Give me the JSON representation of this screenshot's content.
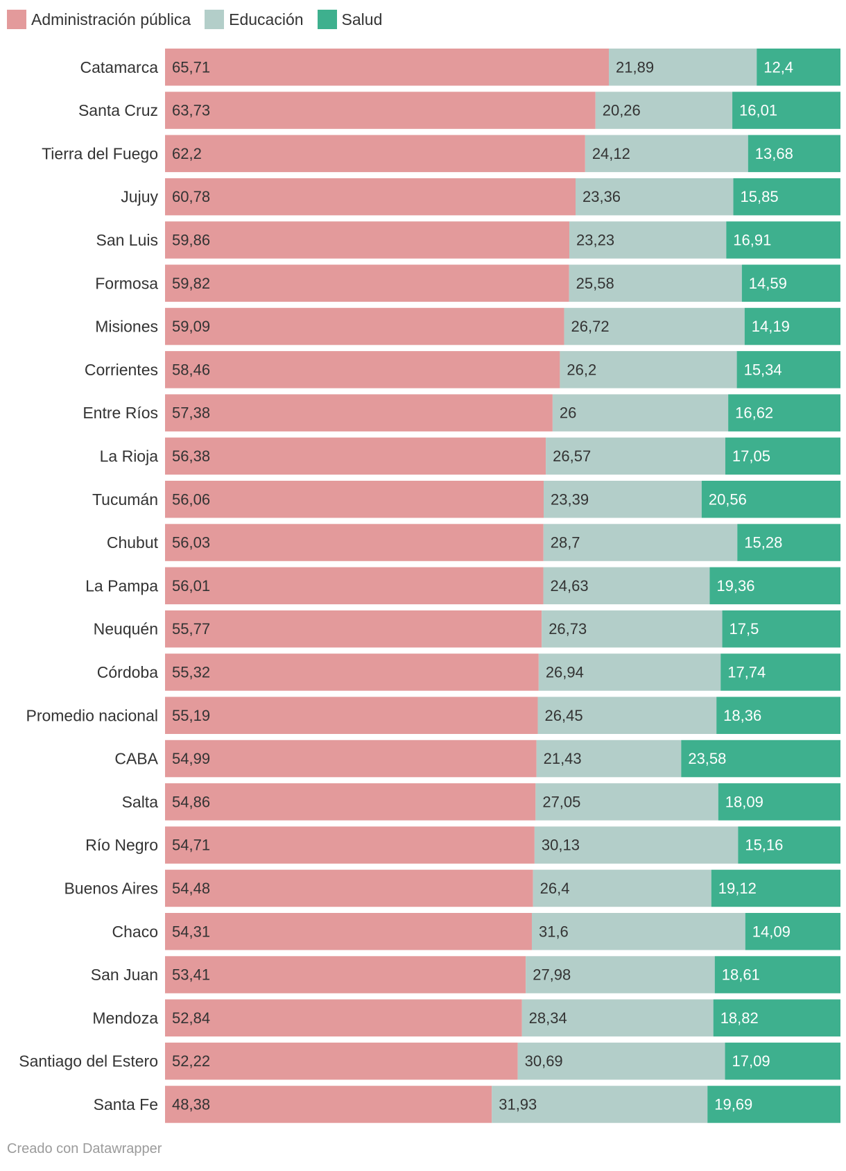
{
  "chart_data": {
    "type": "bar",
    "orientation": "horizontal",
    "stacked": true,
    "xlim": [
      0,
      100
    ],
    "categories": [
      "Catamarca",
      "Santa Cruz",
      "Tierra del Fuego",
      "Jujuy",
      "San Luis",
      "Formosa",
      "Misiones",
      "Corrientes",
      "Entre Ríos",
      "La Rioja",
      "Tucumán",
      "Chubut",
      "La Pampa",
      "Neuquén",
      "Córdoba",
      "Promedio nacional",
      "CABA",
      "Salta",
      "Río Negro",
      "Buenos Aires",
      "Chaco",
      "San Juan",
      "Mendoza",
      "Santiago del Estero",
      "Santa Fe"
    ],
    "series": [
      {
        "name": "Administración pública",
        "color": "#e39a9b",
        "label_color": "#333333",
        "values": [
          65.71,
          63.73,
          62.2,
          60.78,
          59.86,
          59.82,
          59.09,
          58.46,
          57.38,
          56.38,
          56.06,
          56.03,
          56.01,
          55.77,
          55.32,
          55.19,
          54.99,
          54.86,
          54.71,
          54.48,
          54.31,
          53.41,
          52.84,
          52.22,
          48.38
        ],
        "labels": [
          "65,71",
          "63,73",
          "62,2",
          "60,78",
          "59,86",
          "59,82",
          "59,09",
          "58,46",
          "57,38",
          "56,38",
          "56,06",
          "56,03",
          "56,01",
          "55,77",
          "55,32",
          "55,19",
          "54,99",
          "54,86",
          "54,71",
          "54,48",
          "54,31",
          "53,41",
          "52,84",
          "52,22",
          "48,38"
        ]
      },
      {
        "name": "Educación",
        "color": "#b3cec9",
        "label_color": "#333333",
        "values": [
          21.89,
          20.26,
          24.12,
          23.36,
          23.23,
          25.58,
          26.72,
          26.2,
          26,
          26.57,
          23.39,
          28.7,
          24.63,
          26.73,
          26.94,
          26.45,
          21.43,
          27.05,
          30.13,
          26.4,
          31.6,
          27.98,
          28.34,
          30.69,
          31.93
        ],
        "labels": [
          "21,89",
          "20,26",
          "24,12",
          "23,36",
          "23,23",
          "25,58",
          "26,72",
          "26,2",
          "26",
          "26,57",
          "23,39",
          "28,7",
          "24,63",
          "26,73",
          "26,94",
          "26,45",
          "21,43",
          "27,05",
          "30,13",
          "26,4",
          "31,6",
          "27,98",
          "28,34",
          "30,69",
          "31,93"
        ]
      },
      {
        "name": "Salud",
        "color": "#3eb08e",
        "label_color": "#ffffff",
        "values": [
          12.4,
          16.01,
          13.68,
          15.85,
          16.91,
          14.59,
          14.19,
          15.34,
          16.62,
          17.05,
          20.56,
          15.28,
          19.36,
          17.5,
          17.74,
          18.36,
          23.58,
          18.09,
          15.16,
          19.12,
          14.09,
          18.61,
          18.82,
          17.09,
          19.69
        ],
        "labels": [
          "12,4",
          "16,01",
          "13,68",
          "15,85",
          "16,91",
          "14,59",
          "14,19",
          "15,34",
          "16,62",
          "17,05",
          "20,56",
          "15,28",
          "19,36",
          "17,5",
          "17,74",
          "18,36",
          "23,58",
          "18,09",
          "15,16",
          "19,12",
          "14,09",
          "18,61",
          "18,82",
          "17,09",
          "19,69"
        ]
      }
    ],
    "legend_position": "top-left"
  },
  "footer": "Creado con Datawrapper"
}
